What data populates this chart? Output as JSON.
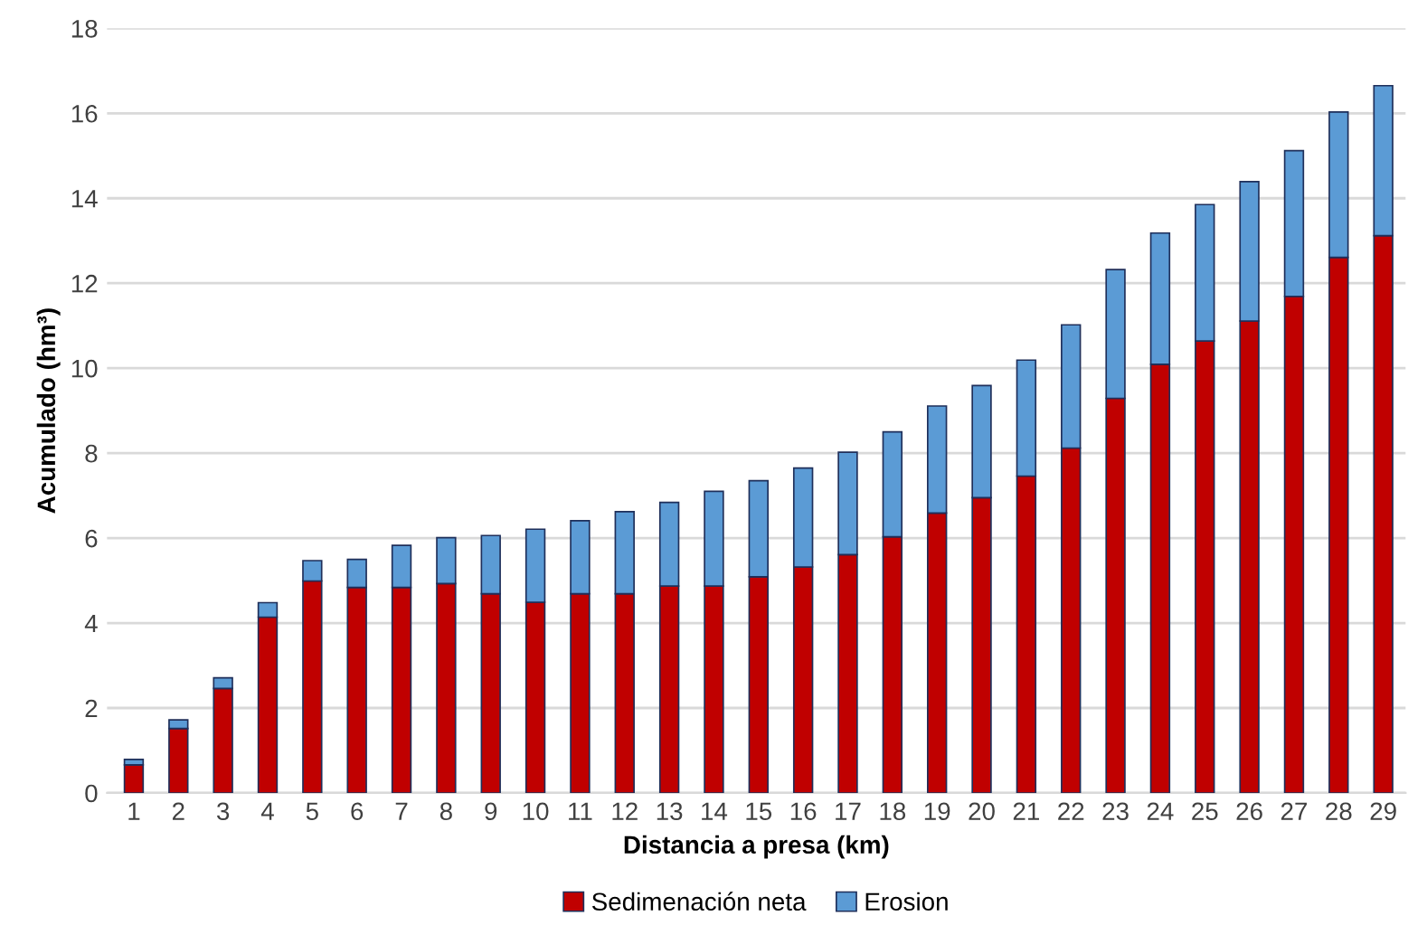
{
  "chart_data": {
    "type": "bar",
    "stacked": true,
    "xlabel": "Distancia a presa (km)",
    "ylabel": "Acumulado (hm³)",
    "categories": [
      "1",
      "2",
      "3",
      "4",
      "5",
      "6",
      "7",
      "8",
      "9",
      "10",
      "11",
      "12",
      "13",
      "14",
      "15",
      "16",
      "17",
      "18",
      "19",
      "20",
      "21",
      "22",
      "23",
      "24",
      "25",
      "26",
      "27",
      "28",
      "29"
    ],
    "series": [
      {
        "name": "Sedimenación neta",
        "color": "#c00000",
        "values": [
          0.66,
          1.52,
          2.46,
          4.14,
          4.99,
          4.84,
          4.84,
          4.93,
          4.69,
          4.49,
          4.69,
          4.69,
          4.87,
          4.87,
          5.09,
          5.32,
          5.61,
          6.03,
          6.59,
          6.95,
          7.46,
          8.12,
          9.29,
          10.09,
          10.64,
          11.11,
          11.69,
          12.61,
          13.12
        ]
      },
      {
        "name": "Erosion",
        "color": "#5b9bd5",
        "values": [
          0.13,
          0.2,
          0.25,
          0.34,
          0.48,
          0.66,
          0.99,
          1.08,
          1.37,
          1.72,
          1.72,
          1.93,
          1.97,
          2.23,
          2.26,
          2.33,
          2.41,
          2.47,
          2.52,
          2.64,
          2.73,
          2.9,
          3.03,
          3.09,
          3.21,
          3.28,
          3.43,
          3.42,
          3.53
        ]
      }
    ],
    "ylim": [
      0,
      18
    ],
    "yticks": [
      0,
      2,
      4,
      6,
      8,
      10,
      12,
      14,
      16,
      18
    ],
    "grid": "y",
    "legend": "bottom"
  }
}
